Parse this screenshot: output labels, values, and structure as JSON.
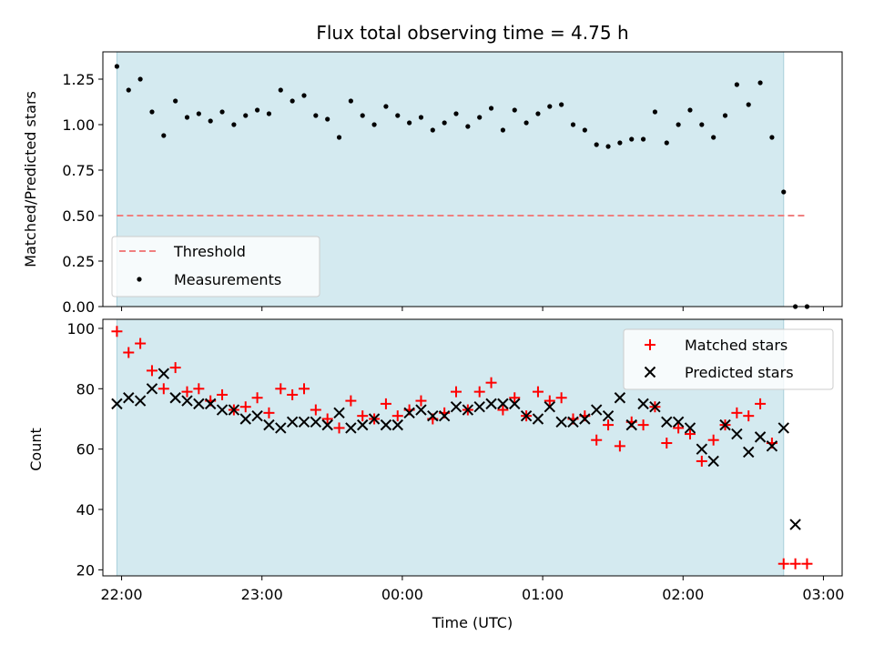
{
  "chart_data": [
    {
      "type": "scatter",
      "title": "Flux total observing time = 4.75 h",
      "xlabel": "",
      "ylabel": "Matched/Predicted stars",
      "x_axis": {
        "type": "time",
        "range": [
          "21:52",
          "03:08"
        ],
        "ticks": [
          "22:00",
          "23:00",
          "00:00",
          "01:00",
          "02:00",
          "03:00"
        ],
        "tick_labels_shown": false
      },
      "ylim": [
        0,
        1.4
      ],
      "yticks": [
        "0.00",
        "0.25",
        "0.50",
        "0.75",
        "1.00",
        "1.25"
      ],
      "observing_window": {
        "start": "21:58",
        "end": "02:43",
        "color": "#d4eaf0"
      },
      "threshold": {
        "name": "Threshold",
        "value": 0.5,
        "x_range": [
          "21:58",
          "02:53"
        ],
        "color": "#f08080",
        "style": "dashed"
      },
      "series": [
        {
          "name": "Measurements",
          "marker": "dot",
          "color": "#000000",
          "x": [
            "21:58",
            "22:03",
            "22:08",
            "22:13",
            "22:18",
            "22:23",
            "22:28",
            "22:33",
            "22:38",
            "22:43",
            "22:48",
            "22:53",
            "22:58",
            "23:03",
            "23:08",
            "23:13",
            "23:18",
            "23:23",
            "23:28",
            "23:33",
            "23:38",
            "23:43",
            "23:48",
            "23:53",
            "23:58",
            "00:03",
            "00:08",
            "00:13",
            "00:18",
            "00:23",
            "00:28",
            "00:33",
            "00:38",
            "00:43",
            "00:48",
            "00:53",
            "00:58",
            "01:03",
            "01:08",
            "01:13",
            "01:18",
            "01:23",
            "01:28",
            "01:33",
            "01:38",
            "01:43",
            "01:48",
            "01:53",
            "01:58",
            "02:03",
            "02:08",
            "02:13",
            "02:18",
            "02:23",
            "02:28",
            "02:33",
            "02:38",
            "02:43",
            "02:48",
            "02:53"
          ],
          "y": [
            1.32,
            1.19,
            1.25,
            1.07,
            0.94,
            1.13,
            1.04,
            1.06,
            1.02,
            1.07,
            1.0,
            1.05,
            1.08,
            1.06,
            1.19,
            1.13,
            1.16,
            1.05,
            1.03,
            0.93,
            1.13,
            1.05,
            1.0,
            1.1,
            1.05,
            1.01,
            1.04,
            0.97,
            1.01,
            1.06,
            0.99,
            1.04,
            1.09,
            0.97,
            1.08,
            1.01,
            1.06,
            1.1,
            1.11,
            1.0,
            0.97,
            0.89,
            0.88,
            0.9,
            0.92,
            0.92,
            1.07,
            0.9,
            1.0,
            1.08,
            1.0,
            0.93,
            1.05,
            1.22,
            1.11,
            1.23,
            0.93,
            0.63,
            0.0,
            0.0
          ]
        }
      ],
      "legend": {
        "position": "lower-left",
        "entries": [
          "Threshold",
          "Measurements"
        ]
      }
    },
    {
      "type": "scatter",
      "title": "",
      "xlabel": "Time (UTC)",
      "ylabel": "Count",
      "x_axis": {
        "type": "time",
        "range": [
          "21:52",
          "03:08"
        ],
        "ticks": [
          "22:00",
          "23:00",
          "00:00",
          "01:00",
          "02:00",
          "03:00"
        ],
        "tick_labels_shown": true
      },
      "ylim": [
        18,
        103
      ],
      "yticks": [
        "20",
        "40",
        "60",
        "80",
        "100"
      ],
      "observing_window": {
        "start": "21:58",
        "end": "02:43",
        "color": "#d4eaf0"
      },
      "series": [
        {
          "name": "Matched stars",
          "marker": "plus",
          "color": "#ff0000",
          "x": [
            "21:58",
            "22:03",
            "22:08",
            "22:13",
            "22:18",
            "22:23",
            "22:28",
            "22:33",
            "22:38",
            "22:43",
            "22:48",
            "22:53",
            "22:58",
            "23:03",
            "23:08",
            "23:13",
            "23:18",
            "23:23",
            "23:28",
            "23:33",
            "23:38",
            "23:43",
            "23:48",
            "23:53",
            "23:58",
            "00:03",
            "00:08",
            "00:13",
            "00:18",
            "00:23",
            "00:28",
            "00:33",
            "00:38",
            "00:43",
            "00:48",
            "00:53",
            "00:58",
            "01:03",
            "01:08",
            "01:13",
            "01:18",
            "01:23",
            "01:28",
            "01:33",
            "01:38",
            "01:43",
            "01:48",
            "01:53",
            "01:58",
            "02:03",
            "02:08",
            "02:13",
            "02:18",
            "02:23",
            "02:28",
            "02:33",
            "02:38",
            "02:43",
            "02:48",
            "02:53"
          ],
          "y": [
            99,
            92,
            95,
            86,
            80,
            87,
            79,
            80,
            76,
            78,
            73,
            74,
            77,
            72,
            80,
            78,
            80,
            73,
            70,
            67,
            76,
            71,
            70,
            75,
            71,
            73,
            76,
            70,
            72,
            79,
            73,
            79,
            82,
            73,
            77,
            71,
            79,
            76,
            77,
            70,
            71,
            63,
            68,
            61,
            69,
            68,
            74,
            62,
            67,
            65,
            56,
            63,
            68,
            72,
            71,
            75,
            62,
            22,
            22,
            22
          ]
        },
        {
          "name": "Predicted stars",
          "marker": "x",
          "color": "#000000",
          "x": [
            "21:58",
            "22:03",
            "22:08",
            "22:13",
            "22:18",
            "22:23",
            "22:28",
            "22:33",
            "22:38",
            "22:43",
            "22:48",
            "22:53",
            "22:58",
            "23:03",
            "23:08",
            "23:13",
            "23:18",
            "23:23",
            "23:28",
            "23:33",
            "23:38",
            "23:43",
            "23:48",
            "23:53",
            "23:58",
            "00:03",
            "00:08",
            "00:13",
            "00:18",
            "00:23",
            "00:28",
            "00:33",
            "00:38",
            "00:43",
            "00:48",
            "00:53",
            "00:58",
            "01:03",
            "01:08",
            "01:13",
            "01:18",
            "01:23",
            "01:28",
            "01:33",
            "01:38",
            "01:43",
            "01:48",
            "01:53",
            "01:58",
            "02:03",
            "02:08",
            "02:13",
            "02:18",
            "02:23",
            "02:28",
            "02:33",
            "02:38",
            "02:43"
          ],
          "y": [
            75,
            77,
            76,
            80,
            85,
            77,
            76,
            75,
            75,
            73,
            73,
            70,
            71,
            68,
            67,
            69,
            69,
            69,
            68,
            72,
            67,
            68,
            70,
            68,
            68,
            72,
            73,
            71,
            71,
            74,
            73,
            74,
            75,
            75,
            75,
            71,
            70,
            74,
            69,
            69,
            70,
            73,
            71,
            77,
            68,
            75,
            74,
            69,
            69,
            67,
            60,
            56,
            68,
            65,
            59,
            64,
            61,
            67
          ]
        },
        {
          "name": "",
          "marker": "x",
          "color": "#000000",
          "x": [
            "02:48"
          ],
          "y": [
            35
          ]
        }
      ],
      "legend": {
        "position": "top-right",
        "entries": [
          "Matched stars",
          "Predicted stars"
        ]
      }
    }
  ]
}
